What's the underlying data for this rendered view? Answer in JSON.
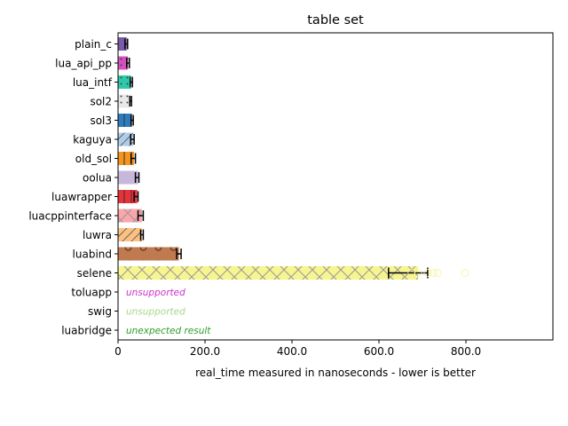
{
  "chart_data": {
    "type": "bar",
    "orientation": "horizontal",
    "title": "table set",
    "xlabel": "real_time measured in nanoseconds - lower is better",
    "ylabel": "",
    "xlim": [
      0,
      1000
    ],
    "xticks": [
      0,
      200,
      400,
      600,
      800
    ],
    "xtick_labels": [
      "0",
      "200.0",
      "400.0",
      "600.0",
      "800.0"
    ],
    "grid": false,
    "legend": "none",
    "categories": [
      "plain_c",
      "lua_api_pp",
      "lua_intf",
      "sol2",
      "sol3",
      "kaguya",
      "old_sol",
      "oolua",
      "luawrapper",
      "luacppinterface",
      "luwra",
      "luabind",
      "selene",
      "toluapp",
      "swig",
      "luabridge"
    ],
    "values": [
      20,
      23,
      30,
      29,
      32,
      35,
      37,
      46,
      44,
      55,
      55,
      140,
      690,
      null,
      null,
      null
    ],
    "error_low": [
      16,
      20,
      28,
      27,
      30,
      29,
      30,
      40,
      37,
      46,
      52,
      135,
      622,
      null,
      null,
      null
    ],
    "error_high": [
      22,
      26,
      33,
      31,
      35,
      37,
      40,
      48,
      46,
      58,
      58,
      145,
      712,
      null,
      null,
      null
    ],
    "outliers": [
      [],
      [],
      [],
      [],
      [],
      [],
      [],
      [],
      [],
      [],
      [],
      [],
      [
        675,
        690,
        712,
        725,
        735,
        798
      ],
      [],
      [],
      []
    ],
    "colors": [
      "#7a5ba8",
      "#d64fc0",
      "#2ec9a8",
      "#e8e8e8",
      "#2e7cc0",
      "#aecde8",
      "#f5951f",
      "#c7b8db",
      "#e8323a",
      "#fca6ab",
      "#fcc07f",
      "#c07a4f",
      "#f7f590",
      null,
      null,
      null
    ],
    "hatches": [
      "none",
      "dots",
      "dots",
      "dots",
      "lines",
      "slash",
      "lines",
      "none",
      "lines",
      "cross",
      "slash",
      "circles",
      "cross",
      null,
      null,
      null
    ],
    "annotations": [
      {
        "category": "toluapp",
        "text": "unsupported",
        "color": "#cc33cc"
      },
      {
        "category": "swig",
        "text": "unsupported",
        "color": "#a8d88a"
      },
      {
        "category": "luabridge",
        "text": "unexpected result",
        "color": "#2ca02c"
      }
    ]
  }
}
